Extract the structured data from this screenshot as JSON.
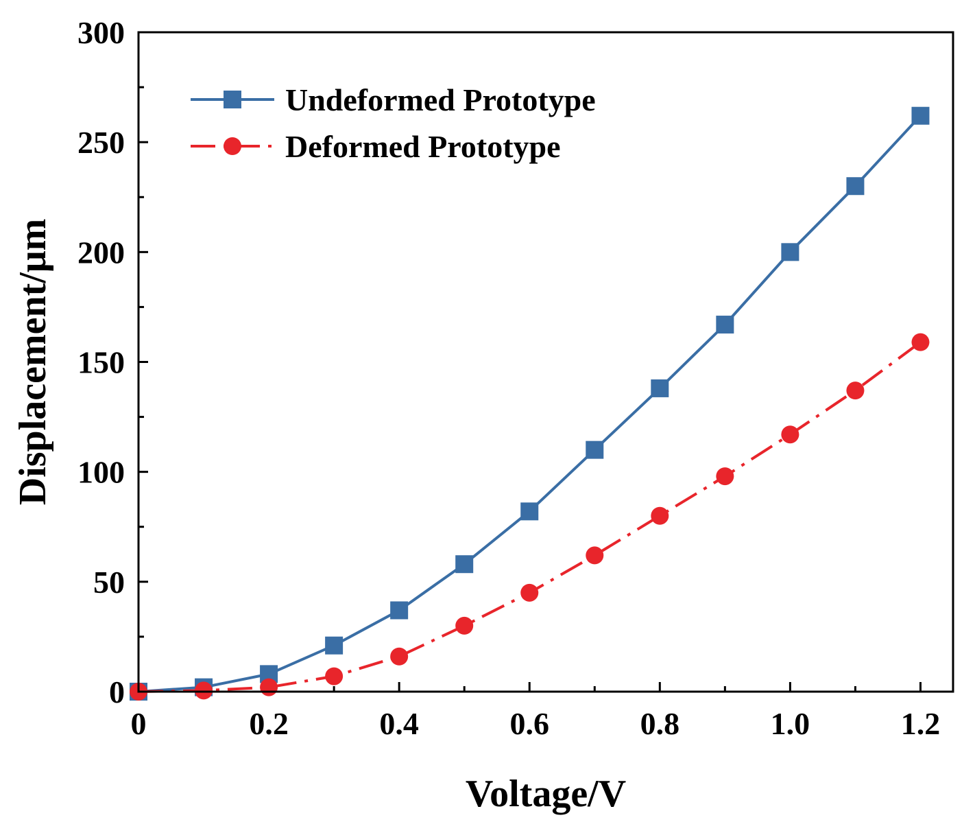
{
  "chart_data": {
    "type": "line",
    "title": "",
    "xlabel": "Voltage/V",
    "ylabel": "Displacement/μm",
    "xlim": [
      0,
      1.25
    ],
    "ylim": [
      0,
      300
    ],
    "xticks": [
      0,
      0.2,
      0.4,
      0.6,
      0.8,
      1.0,
      1.2
    ],
    "xtick_labels": [
      "0",
      "0.2",
      "0.4",
      "0.6",
      "0.8",
      "1.0",
      "1.2"
    ],
    "yticks": [
      0,
      50,
      100,
      150,
      200,
      250,
      300
    ],
    "ytick_labels": [
      "0",
      "50",
      "100",
      "150",
      "200",
      "250",
      "300"
    ],
    "grid": false,
    "legend_position": "top-left",
    "x": [
      0,
      0.1,
      0.2,
      0.3,
      0.4,
      0.5,
      0.6,
      0.7,
      0.8,
      0.9,
      1.0,
      1.1,
      1.2
    ],
    "series": [
      {
        "name": "Undeformed Prototype",
        "color": "#3a6ea5",
        "marker": "square",
        "line_style": "solid",
        "values": [
          0,
          2,
          8,
          21,
          37,
          58,
          82,
          110,
          138,
          167,
          200,
          230,
          262
        ]
      },
      {
        "name": "Deformed Prototype",
        "color": "#e8252b",
        "marker": "circle",
        "line_style": "dash-dot",
        "values": [
          0,
          0.5,
          2,
          7,
          16,
          30,
          45,
          62,
          80,
          98,
          117,
          137,
          159
        ]
      }
    ]
  }
}
